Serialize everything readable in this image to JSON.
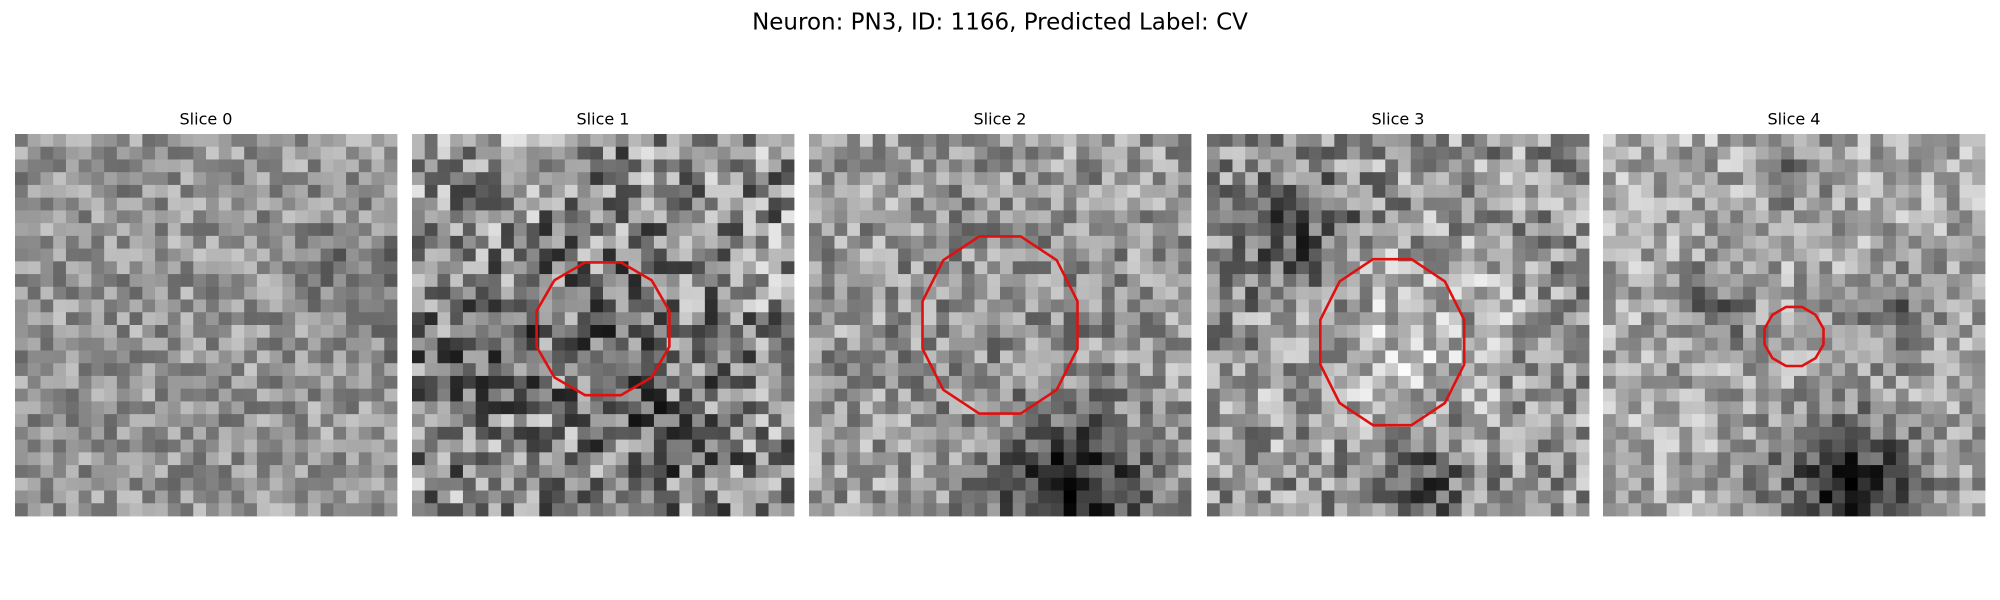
{
  "title": "Neuron: PN3, ID: 1166, Predicted Label: CV",
  "panels": [
    {
      "title": "Slice 0"
    },
    {
      "title": "Slice 1"
    },
    {
      "title": "Slice 2"
    },
    {
      "title": "Slice 3"
    },
    {
      "title": "Slice 4"
    }
  ]
}
